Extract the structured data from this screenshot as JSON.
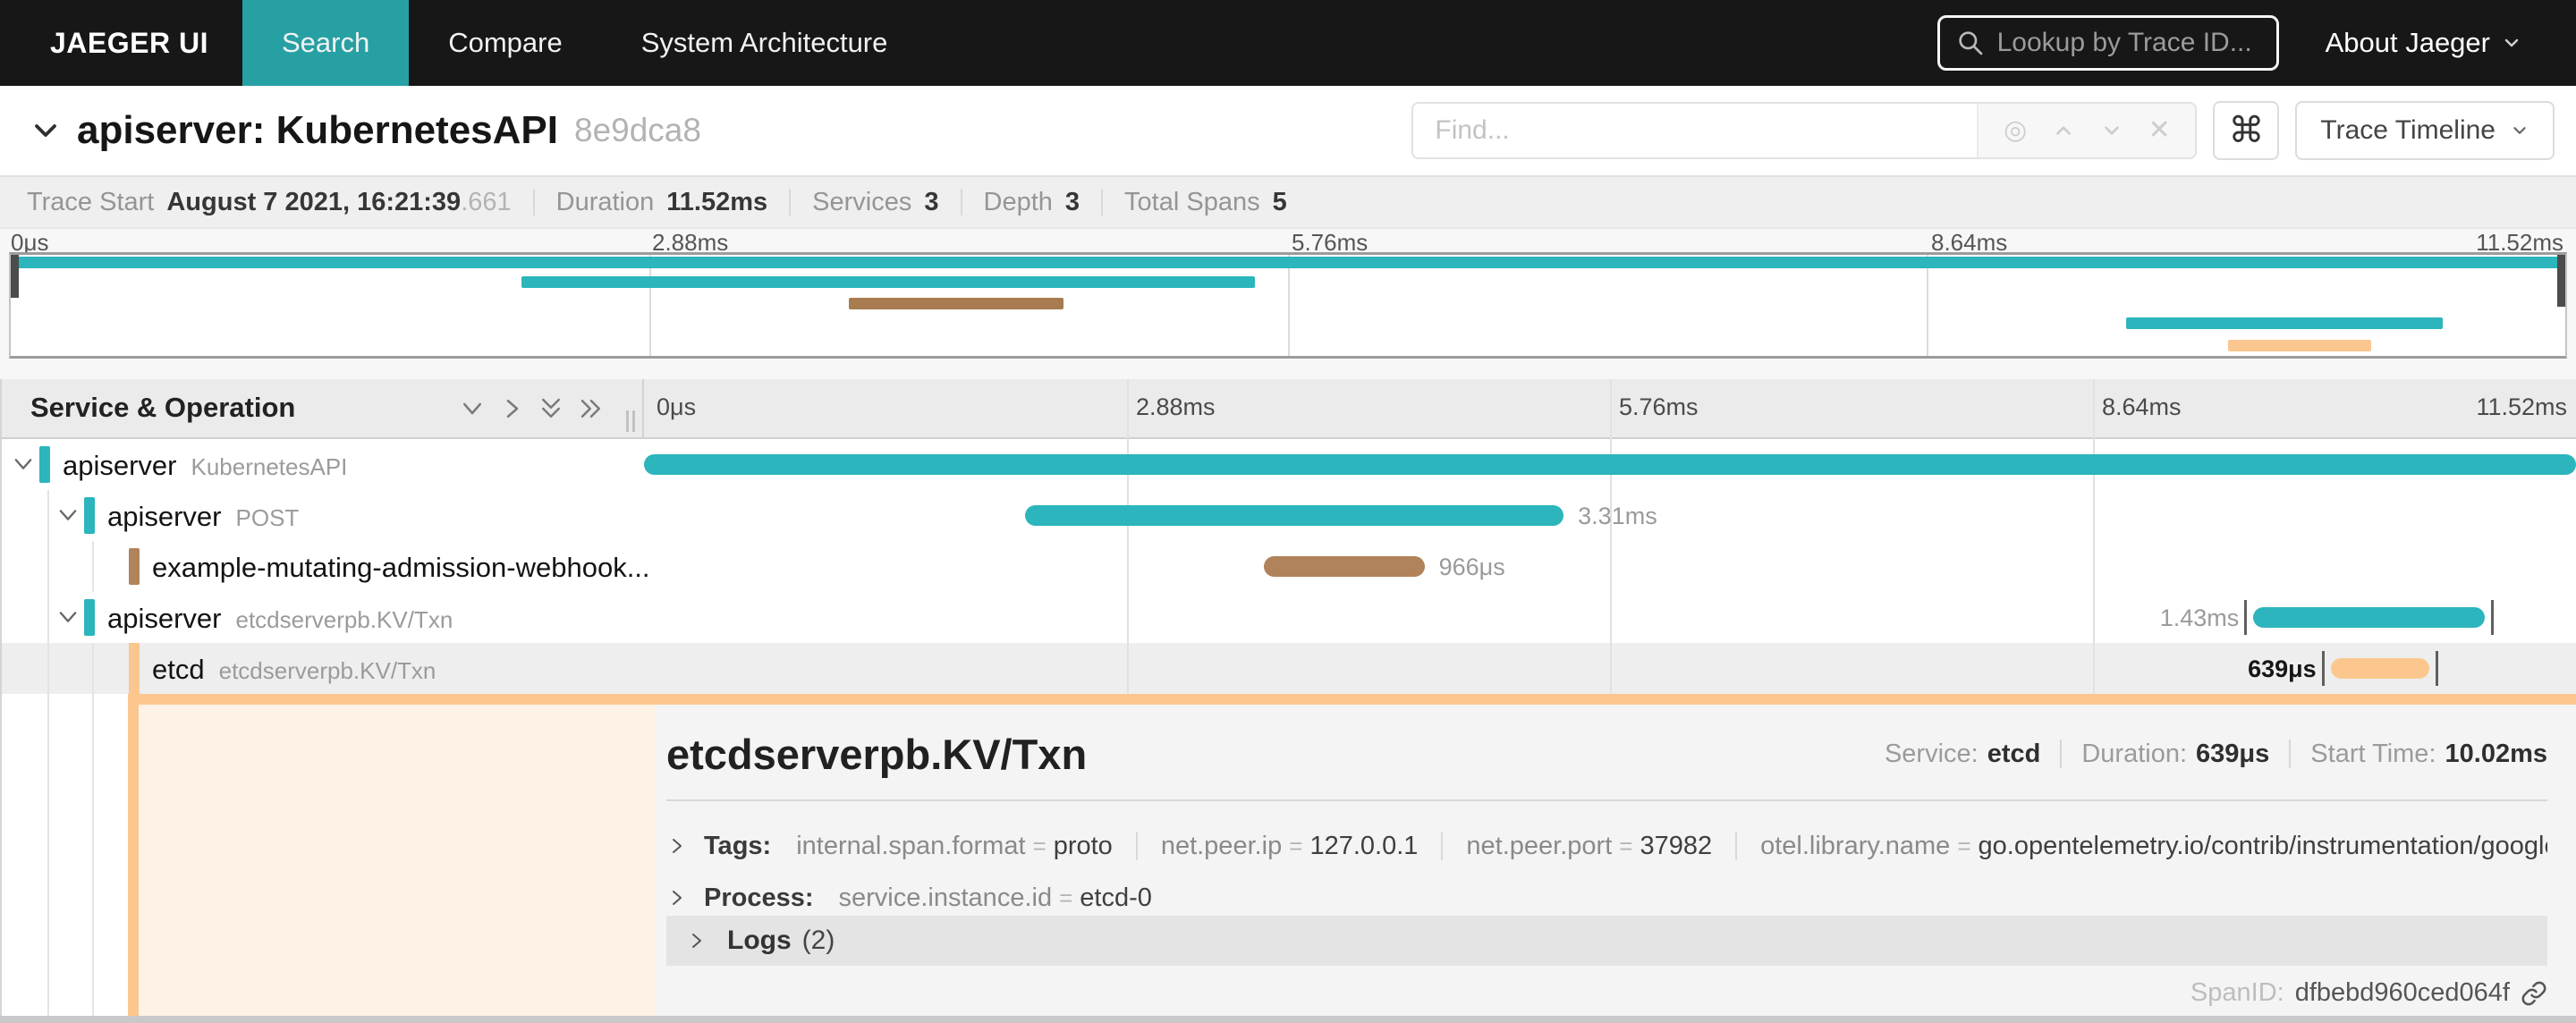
{
  "colors": {
    "teal": "#2cb5bc",
    "brown": "#b1835a",
    "brown_dark": "#a97b50",
    "orange": "#fbc78e",
    "nav_active": "#27a0a4",
    "peach_bg": "#fdf2e5"
  },
  "nav": {
    "brand": "JAEGER UI",
    "tabs": [
      {
        "label": "Search",
        "active": true
      },
      {
        "label": "Compare",
        "active": false
      },
      {
        "label": "System Architecture",
        "active": false
      }
    ],
    "lookup_placeholder": "Lookup by Trace ID...",
    "about": "About Jaeger"
  },
  "trace_header": {
    "title": "apiserver: KubernetesAPI",
    "trace_id": "8e9dca8",
    "find_placeholder": "Find...",
    "locate_icon": "◎",
    "clear_icon": "✕",
    "shortcut": "⌘",
    "view_button": "Trace Timeline"
  },
  "summary": {
    "items": [
      {
        "label": "Trace Start",
        "value": "August 7 2021, 16:21:39",
        "suffix": ".661"
      },
      {
        "label": "Duration",
        "value": "11.52ms",
        "suffix": ""
      },
      {
        "label": "Services",
        "value": "3",
        "suffix": ""
      },
      {
        "label": "Depth",
        "value": "3",
        "suffix": ""
      },
      {
        "label": "Total Spans",
        "value": "5",
        "suffix": ""
      }
    ]
  },
  "ticks": [
    "0μs",
    "2.88ms",
    "5.76ms",
    "8.64ms",
    "11.52ms"
  ],
  "minimap": {
    "bars": [
      {
        "left": 0,
        "width": 100,
        "color": "#2cb5bc"
      },
      {
        "left": 20.0,
        "width": 28.7,
        "color": "#2cb5bc"
      },
      {
        "left": 32.8,
        "width": 8.4,
        "color": "#a97b50"
      },
      {
        "left": 82.8,
        "width": 12.4,
        "color": "#2cb5bc"
      },
      {
        "left": 86.8,
        "width": 5.6,
        "color": "#fbc78e"
      }
    ]
  },
  "timeline": {
    "left_header": "Service & Operation",
    "rows": [
      {
        "service": "apiserver",
        "operation": "KubernetesAPI",
        "bar": {
          "left": 0,
          "width": 100,
          "color": "#2cb5bc",
          "label": "",
          "label_side": "right"
        }
      },
      {
        "service": "apiserver",
        "operation": "POST",
        "bar": {
          "left": 19.7,
          "width": 27.9,
          "color": "#2cb5bc",
          "label": "3.31ms",
          "label_side": "right"
        }
      },
      {
        "service": "example-mutating-admission-webhook...",
        "operation": "",
        "bar": {
          "left": 32.1,
          "width": 8.3,
          "color": "#b1835a",
          "label": "966μs",
          "label_side": "right"
        }
      },
      {
        "service": "apiserver",
        "operation": "etcdserverpb.KV/Txn",
        "bar": {
          "left": 83.3,
          "width": 12.0,
          "color": "#2cb5bc",
          "label": "1.43ms",
          "label_side": "left"
        }
      },
      {
        "service": "etcd",
        "operation": "etcdserverpb.KV/Txn",
        "bar": {
          "left": 87.3,
          "width": 5.1,
          "color": "#fbc78e",
          "label": "639μs",
          "label_side": "left"
        }
      }
    ]
  },
  "detail": {
    "title": "etcdserverpb.KV/Txn",
    "meta": [
      {
        "label": "Service:",
        "value": "etcd"
      },
      {
        "label": "Duration:",
        "value": "639μs"
      },
      {
        "label": "Start Time:",
        "value": "10.02ms"
      }
    ],
    "eq": "=",
    "tags_label": "Tags:",
    "tags": [
      {
        "key": "internal.span.format",
        "value": "proto"
      },
      {
        "key": "net.peer.ip",
        "value": "127.0.0.1"
      },
      {
        "key": "net.peer.port",
        "value": "37982"
      },
      {
        "key": "otel.library.name",
        "value": "go.opentelemetry.io/contrib/instrumentation/google.gola..."
      }
    ],
    "process_label": "Process:",
    "process": [
      {
        "key": "service.instance.id",
        "value": "etcd-0"
      }
    ],
    "logs_label": "Logs",
    "logs_count": "(2)",
    "span_id_label": "SpanID:",
    "span_id": "dfbebd960ced064f"
  }
}
